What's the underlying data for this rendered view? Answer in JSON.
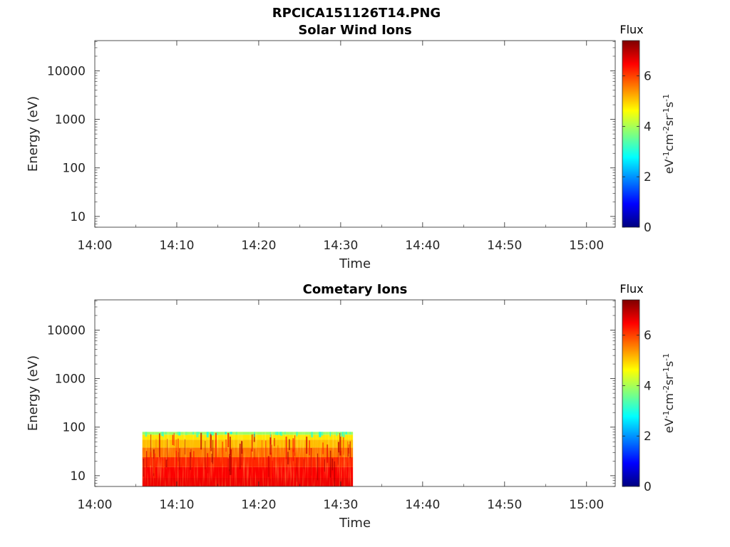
{
  "figure_title": "RPCICA151126T14.PNG",
  "colorbar_colors": [
    "#00007f",
    "#0000ff",
    "#007fff",
    "#00ffff",
    "#7fff7f",
    "#ffff00",
    "#ff7f00",
    "#ff0000",
    "#7f0000"
  ],
  "chart_data": [
    {
      "type": "heatmap",
      "title": "Solar Wind Ions",
      "xlabel": "Time",
      "ylabel": "Energy (eV)",
      "x_ticks": [
        "14:00",
        "14:10",
        "14:20",
        "14:30",
        "14:40",
        "14:50",
        "15:00"
      ],
      "xlim_minutes": [
        0,
        63.5
      ],
      "y_scale": "log",
      "ylim": [
        6,
        42000
      ],
      "y_ticks": [
        10,
        100,
        1000,
        10000
      ],
      "y_tick_labels": [
        "10",
        "100",
        "1000",
        "10000"
      ],
      "colorbar": {
        "title": "Flux",
        "label": "eV-1cm-2sr-1s-1",
        "range": [
          0,
          7.4
        ],
        "ticks": [
          0,
          2,
          4,
          6
        ],
        "tick_labels": [
          "0",
          "2",
          "4",
          "6"
        ]
      },
      "data_segments": []
    },
    {
      "type": "heatmap",
      "title": "Cometary Ions",
      "xlabel": "Time",
      "ylabel": "Energy (eV)",
      "x_ticks": [
        "14:00",
        "14:10",
        "14:20",
        "14:30",
        "14:40",
        "14:50",
        "15:00"
      ],
      "xlim_minutes": [
        0,
        63.5
      ],
      "y_scale": "log",
      "ylim": [
        6,
        42000
      ],
      "y_ticks": [
        10,
        100,
        1000,
        10000
      ],
      "y_tick_labels": [
        "10",
        "100",
        "1000",
        "10000"
      ],
      "colorbar": {
        "title": "Flux",
        "label": "eV-1cm-2sr-1s-1",
        "range": [
          0,
          7.4
        ],
        "ticks": [
          0,
          2,
          4,
          6
        ],
        "tick_labels": [
          "0",
          "2",
          "4",
          "6"
        ]
      },
      "data_segments": [
        {
          "time_start_minutes": 5.8,
          "time_end_minutes": 31.5,
          "energy_min_ev": 6,
          "energy_max_ev": 80,
          "bands": [
            {
              "energy_from_ev": 6,
              "energy_to_ev": 9,
              "flux": 6.6
            },
            {
              "energy_from_ev": 9,
              "energy_to_ev": 15,
              "flux": 6.5
            },
            {
              "energy_from_ev": 15,
              "energy_to_ev": 24,
              "flux": 6.2
            },
            {
              "energy_from_ev": 24,
              "energy_to_ev": 38,
              "flux": 5.6
            },
            {
              "energy_from_ev": 38,
              "energy_to_ev": 55,
              "flux": 5.1
            },
            {
              "energy_from_ev": 55,
              "energy_to_ev": 70,
              "flux": 4.8
            },
            {
              "energy_from_ev": 70,
              "energy_to_ev": 80,
              "flux": 3.9
            }
          ]
        }
      ]
    }
  ]
}
